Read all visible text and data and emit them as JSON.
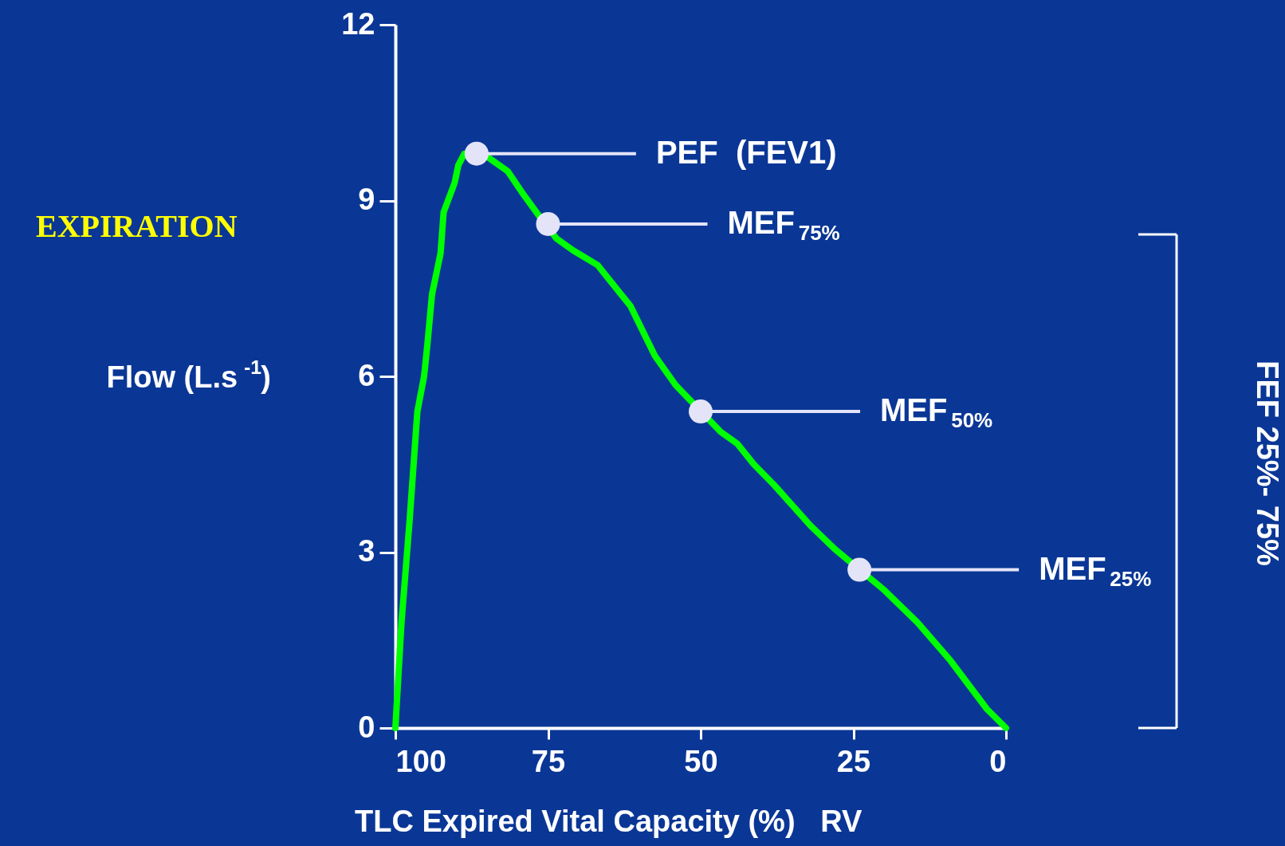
{
  "chart_data": {
    "type": "line",
    "xlabel": "TLC Expired Vital Capacity (%)   RV",
    "ylabel": "Flow (L.s$^{-1}$)",
    "xlim": [
      100,
      0
    ],
    "xticks": [
      100,
      75,
      50,
      25,
      0
    ],
    "ylim": [
      0,
      12
    ],
    "yticks": [
      0,
      3,
      6,
      9,
      12
    ],
    "series": [
      {
        "color": "#00ff00",
        "x": [
          100,
          99,
          97.7,
          96.4,
          95.3,
          94.8,
          94,
          92.6,
          92.1,
          90.3,
          89.7,
          88.7,
          85,
          81.6,
          79,
          76.2,
          73.6,
          70.9,
          66.9,
          61.5,
          57.5,
          54.1,
          46.7,
          44,
          41.3,
          38,
          32,
          28,
          19.9,
          14.5,
          9.1,
          3.1,
          0
        ],
        "values": [
          0,
          1.8,
          3.5,
          5.4,
          6.0,
          6.5,
          7.4,
          8.1,
          8.8,
          9.3,
          9.6,
          9.8,
          9.75,
          9.5,
          9.1,
          8.7,
          8.35,
          8.15,
          7.9,
          7.2,
          6.35,
          5.85,
          5.05,
          4.85,
          4.5,
          4.15,
          3.45,
          3.05,
          2.35,
          1.8,
          1.15,
          0.32,
          0
        ]
      },
      {
        "type": "scatter",
        "color": "#e4e4f8",
        "x": [
          86.7,
          75,
          50,
          24
        ],
        "values": [
          9.8,
          8.6,
          5.4,
          2.7
        ]
      }
    ],
    "annotations": [
      "PEF  (FEV1)",
      "MEF$_{75%}$",
      "MEF$_{50%}$",
      "MEF$_{25%}$",
      "EXPIRATION",
      "FEF 25%- 75%"
    ]
  }
}
